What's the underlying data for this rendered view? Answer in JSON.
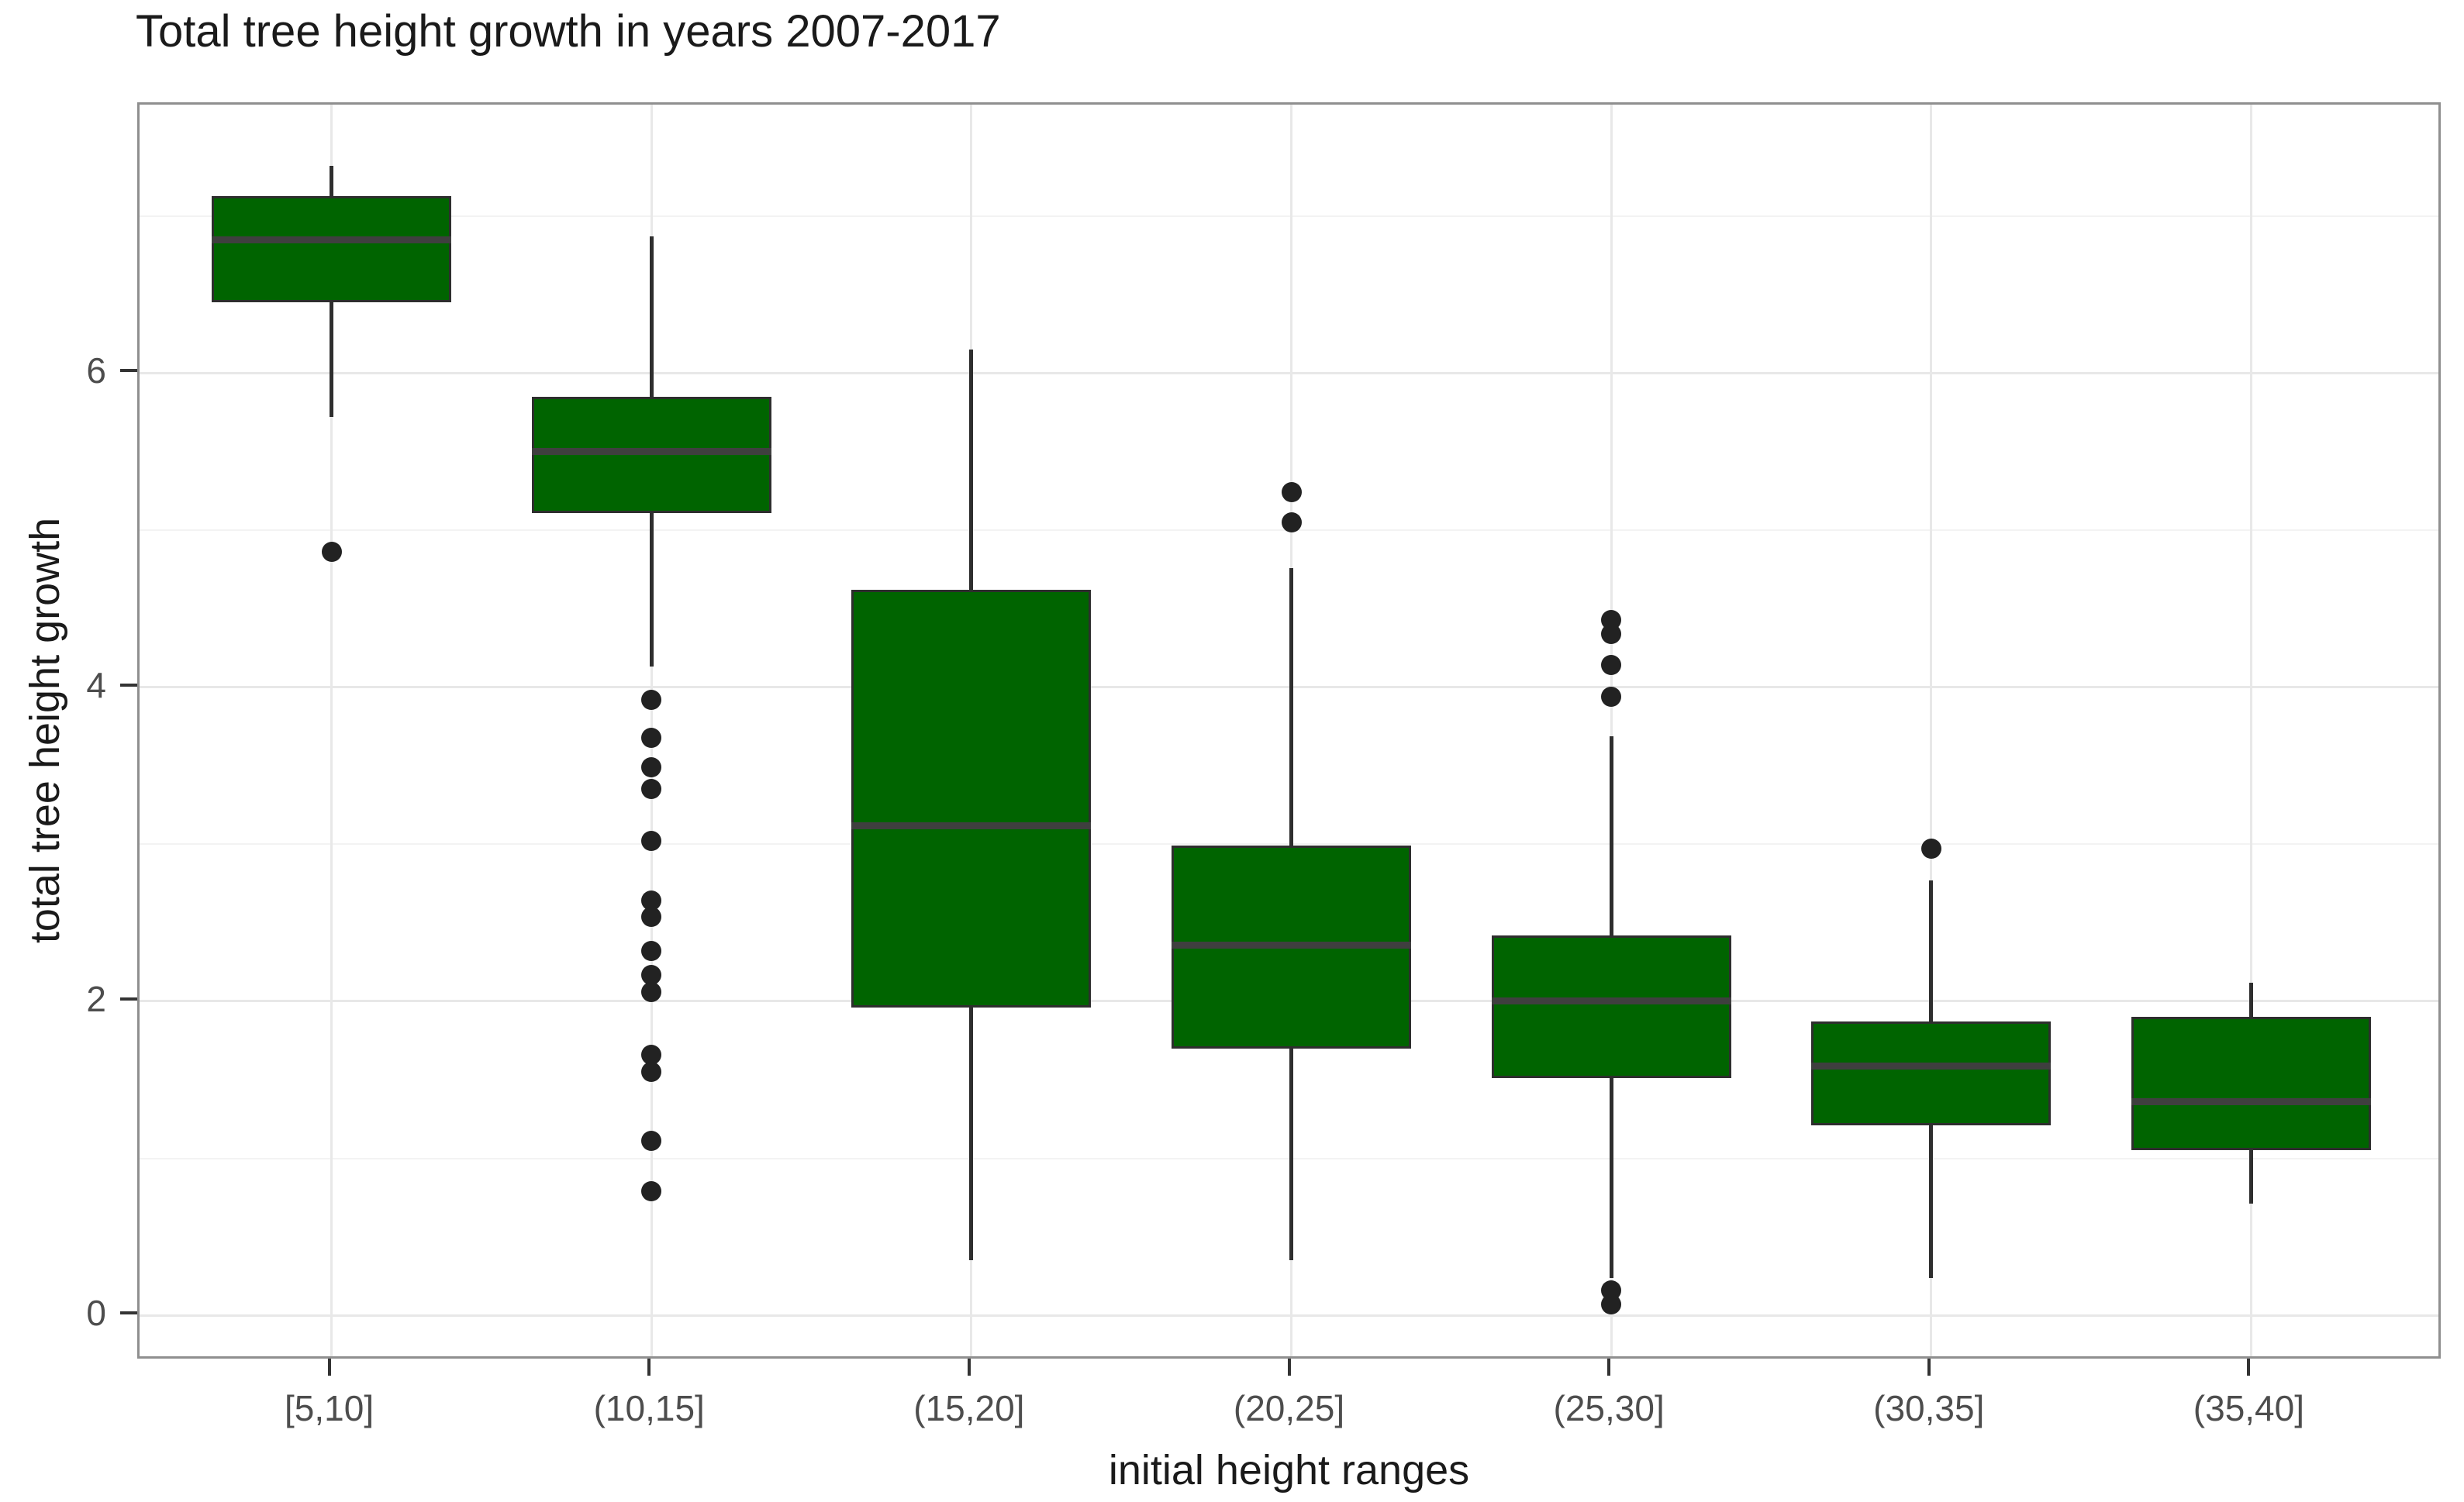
{
  "title": "Total tree height growth in years 2007-2017",
  "chart_data": {
    "type": "boxplot",
    "title": "Total tree height growth in years 2007-2017",
    "xlabel": "initial height ranges",
    "ylabel": "total tree height growth",
    "categories": [
      "[5,10]",
      "(10,15]",
      "(15,20]",
      "(20,25]",
      "(25,30]",
      "(30,35]",
      "(35,40]"
    ],
    "ylim": [
      -0.29,
      7.71
    ],
    "yticks_major": [
      0,
      2,
      4,
      6
    ],
    "yticks_minor": [
      1,
      3,
      5,
      7
    ],
    "grid": true,
    "legend_position": "none",
    "boxes": [
      {
        "category": "[5,10]",
        "whisker_low": 5.72,
        "q1": 6.45,
        "median": 6.85,
        "q3": 7.13,
        "whisker_high": 7.32,
        "outliers": [
          4.86
        ]
      },
      {
        "category": "(10,15]",
        "whisker_low": 4.13,
        "q1": 5.11,
        "median": 5.5,
        "q3": 5.85,
        "whisker_high": 6.87,
        "outliers": [
          3.92,
          3.68,
          3.49,
          3.35,
          3.02,
          2.64,
          2.54,
          2.32,
          2.17,
          2.06,
          1.66,
          1.55,
          1.11,
          0.79
        ]
      },
      {
        "category": "(15,20]",
        "whisker_low": 0.35,
        "q1": 1.96,
        "median": 3.12,
        "q3": 4.62,
        "whisker_high": 6.15,
        "outliers": []
      },
      {
        "category": "(20,25]",
        "whisker_low": 0.35,
        "q1": 1.7,
        "median": 2.36,
        "q3": 2.99,
        "whisker_high": 4.76,
        "outliers": [
          5.24,
          5.05
        ]
      },
      {
        "category": "(25,30]",
        "whisker_low": 0.24,
        "q1": 1.51,
        "median": 2.0,
        "q3": 2.42,
        "whisker_high": 3.69,
        "outliers": [
          4.43,
          4.34,
          4.14,
          3.94,
          0.16,
          0.07
        ]
      },
      {
        "category": "(30,35]",
        "whisker_low": 0.24,
        "q1": 1.21,
        "median": 1.59,
        "q3": 1.87,
        "whisker_high": 2.77,
        "outliers": [
          2.97
        ]
      },
      {
        "category": "(35,40]",
        "whisker_low": 0.71,
        "q1": 1.05,
        "median": 1.36,
        "q3": 1.9,
        "whisker_high": 2.12,
        "outliers": []
      }
    ],
    "colors": {
      "box_fill": "#006400",
      "box_border": "#2e2e2e",
      "median": "#3f3f3f",
      "whisker": "#2e2e2e",
      "outlier": "#222222",
      "grid_major": "#e8e8e8",
      "grid_minor": "#f3f3f3",
      "panel_border": "#8f8f8f",
      "tick": "#333333",
      "tick_label": "#4d4d4d",
      "text": "#1a1a1a",
      "background": "#ffffff"
    }
  }
}
